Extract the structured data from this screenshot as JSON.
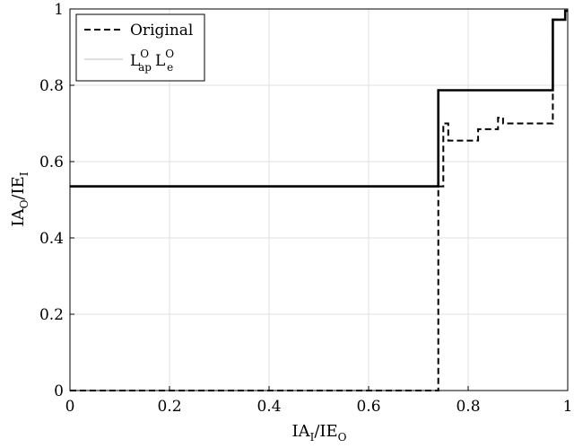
{
  "chart_data": {
    "type": "line",
    "xlim": [
      0,
      1
    ],
    "ylim": [
      0,
      1
    ],
    "x_ticks": [
      0,
      0.2,
      0.4,
      0.6,
      0.8,
      1
    ],
    "y_ticks": [
      0,
      0.2,
      0.4,
      0.6,
      0.8,
      1
    ],
    "x_tick_labels": [
      "0",
      "0.2",
      "0.4",
      "0.6",
      "0.8",
      "1"
    ],
    "y_tick_labels": [
      "0",
      "0.2",
      "0.4",
      "0.6",
      "0.8",
      "1"
    ],
    "grid": true,
    "legend_position": "top-left",
    "xlabel": {
      "main": "IA",
      "sub1": "I",
      "mid": "/IE",
      "sub2": "O"
    },
    "ylabel": {
      "main": "IA",
      "sub1": "O",
      "mid": "/IE",
      "sub2": "I"
    },
    "series": [
      {
        "name": "Original",
        "style": "dashed",
        "color": "#000000",
        "x": [
          0,
          0.74,
          0.74,
          0.75,
          0.75,
          0.76,
          0.76,
          0.82,
          0.82,
          0.86,
          0.86,
          0.87,
          0.87,
          0.97,
          0.97,
          0.995,
          0.995,
          1
        ],
        "y": [
          0,
          0,
          0.535,
          0.535,
          0.7,
          0.7,
          0.655,
          0.655,
          0.685,
          0.685,
          0.715,
          0.715,
          0.7,
          0.7,
          0.972,
          0.972,
          0.995,
          0.995
        ]
      },
      {
        "name_parts": {
          "a": "L",
          "a_sup": "O",
          "a_sub": "ap",
          "b": "L",
          "b_sup": "O",
          "b_sub": "e"
        },
        "style": "solid-thin",
        "color": "#bfbfbf",
        "x": [],
        "y": []
      },
      {
        "style": "solid",
        "color": "#000000",
        "x": [
          0,
          0.74,
          0.74,
          0.97,
          0.97,
          0.995,
          0.995,
          1
        ],
        "y": [
          0.535,
          0.535,
          0.787,
          0.787,
          0.972,
          0.972,
          0.995,
          0.995
        ]
      }
    ]
  }
}
